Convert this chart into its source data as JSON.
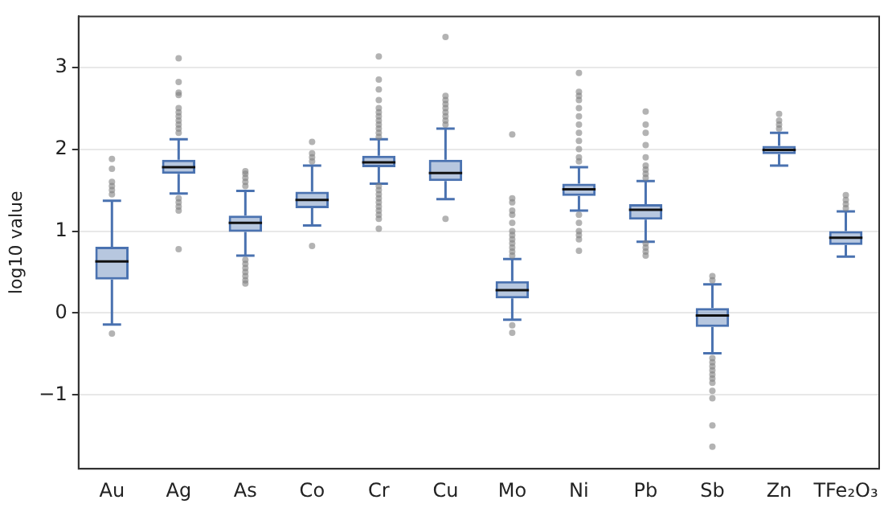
{
  "chart_data": {
    "type": "box",
    "ylabel": "log10 value",
    "color": "#4a72b0",
    "categories": [
      "Au",
      "Ag",
      "As",
      "Co",
      "Cr",
      "Cu",
      "Mo",
      "Ni",
      "Pb",
      "Sb",
      "Zn",
      "TFe₂O₃"
    ],
    "boxes": [
      {
        "low": -0.14,
        "q1": 0.41,
        "median": 0.63,
        "q3": 0.81,
        "high": 1.37,
        "outliers": [
          1.88,
          1.76,
          1.6,
          1.55,
          1.5,
          1.45,
          -0.25
        ]
      },
      {
        "low": 1.46,
        "q1": 1.7,
        "median": 1.78,
        "q3": 1.87,
        "high": 2.12,
        "outliers": [
          3.11,
          2.82,
          2.69,
          2.66,
          2.5,
          2.45,
          2.4,
          2.35,
          2.3,
          2.25,
          2.2,
          1.4,
          1.35,
          1.3,
          1.25,
          0.78
        ]
      },
      {
        "low": 0.7,
        "q1": 0.99,
        "median": 1.1,
        "q3": 1.19,
        "high": 1.49,
        "outliers": [
          1.73,
          1.7,
          1.65,
          1.6,
          1.55,
          0.65,
          0.6,
          0.55,
          0.5,
          0.45,
          0.4,
          0.36
        ]
      },
      {
        "low": 1.07,
        "q1": 1.28,
        "median": 1.38,
        "q3": 1.48,
        "high": 1.8,
        "outliers": [
          2.09,
          1.95,
          1.9,
          1.85,
          0.82
        ]
      },
      {
        "low": 1.58,
        "q1": 1.78,
        "median": 1.84,
        "q3": 1.92,
        "high": 2.12,
        "outliers": [
          3.13,
          2.85,
          2.73,
          2.6,
          2.5,
          2.45,
          2.4,
          2.35,
          2.3,
          2.25,
          2.2,
          2.15,
          1.55,
          1.5,
          1.45,
          1.4,
          1.35,
          1.3,
          1.25,
          1.2,
          1.15,
          1.03
        ]
      },
      {
        "low": 1.39,
        "q1": 1.61,
        "median": 1.71,
        "q3": 1.87,
        "high": 2.25,
        "outliers": [
          3.37,
          2.65,
          2.6,
          2.55,
          2.5,
          2.45,
          2.4,
          2.35,
          2.3,
          1.15
        ]
      },
      {
        "low": -0.08,
        "q1": 0.18,
        "median": 0.28,
        "q3": 0.39,
        "high": 0.66,
        "outliers": [
          2.18,
          1.4,
          1.35,
          1.25,
          1.2,
          1.1,
          1.0,
          0.95,
          0.9,
          0.85,
          0.8,
          0.75,
          0.7,
          -0.15,
          -0.24
        ]
      },
      {
        "low": 1.25,
        "q1": 1.43,
        "median": 1.51,
        "q3": 1.58,
        "high": 1.78,
        "outliers": [
          2.93,
          2.7,
          2.65,
          2.6,
          2.5,
          2.4,
          2.3,
          2.2,
          2.1,
          2.0,
          1.9,
          1.85,
          1.2,
          1.1,
          1.0,
          0.95,
          0.9,
          0.76
        ]
      },
      {
        "low": 0.87,
        "q1": 1.14,
        "median": 1.26,
        "q3": 1.33,
        "high": 1.61,
        "outliers": [
          2.46,
          2.3,
          2.2,
          2.05,
          1.9,
          1.8,
          1.75,
          1.7,
          1.65,
          0.85,
          0.8,
          0.75,
          0.7
        ]
      },
      {
        "low": -0.49,
        "q1": -0.17,
        "median": -0.03,
        "q3": 0.06,
        "high": 0.35,
        "outliers": [
          0.45,
          0.4,
          -0.55,
          -0.6,
          -0.65,
          -0.7,
          -0.75,
          -0.8,
          -0.85,
          -0.95,
          -1.04,
          -1.37,
          -1.63
        ]
      },
      {
        "low": 1.8,
        "q1": 1.94,
        "median": 1.99,
        "q3": 2.04,
        "high": 2.2,
        "outliers": [
          2.25,
          2.3,
          2.35,
          2.43
        ]
      },
      {
        "low": 0.69,
        "q1": 0.83,
        "median": 0.92,
        "q3": 1.0,
        "high": 1.24,
        "outliers": [
          1.28,
          1.33,
          1.38,
          1.44
        ]
      }
    ],
    "ylim": [
      -1.9,
      3.62
    ],
    "yticks": [
      {
        "value": -1,
        "label": "−1"
      },
      0,
      1,
      2,
      3
    ],
    "grid": "y",
    "legend": false
  }
}
